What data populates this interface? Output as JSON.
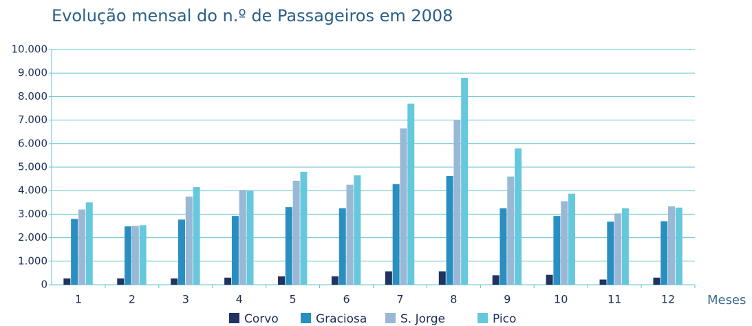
{
  "chart_data": {
    "type": "bar",
    "title": "Evolução mensal do n.º de Passageiros em 2008",
    "x_label": "Meses",
    "categories": [
      "1",
      "2",
      "3",
      "4",
      "5",
      "6",
      "7",
      "8",
      "9",
      "10",
      "11",
      "12"
    ],
    "series": [
      {
        "name": "Corvo",
        "color": "#1f3461",
        "values": [
          270,
          270,
          270,
          300,
          360,
          360,
          570,
          570,
          400,
          420,
          220,
          300
        ]
      },
      {
        "name": "Graciosa",
        "color": "#2a8fc0",
        "values": [
          2800,
          2480,
          2770,
          2920,
          3300,
          3250,
          4280,
          4620,
          3250,
          2920,
          2680,
          2700
        ]
      },
      {
        "name": "S. Jorge",
        "color": "#98b8d6",
        "values": [
          3200,
          2500,
          3750,
          4030,
          4420,
          4250,
          6650,
          7000,
          4600,
          3550,
          3030,
          3330
        ]
      },
      {
        "name": "Pico",
        "color": "#66c8dd",
        "values": [
          3500,
          2530,
          4150,
          4000,
          4800,
          4650,
          7700,
          8800,
          5800,
          3870,
          3250,
          3280
        ]
      }
    ],
    "ylim": [
      0,
      10000
    ],
    "yticks": [
      0,
      {
        "value": 1000,
        "label": "1.000"
      },
      {
        "value": 2000,
        "label": "2.000"
      },
      {
        "value": 3000,
        "label": "3.000"
      },
      {
        "value": 4000,
        "label": "4.000"
      },
      {
        "value": 5000,
        "label": "5.000"
      },
      {
        "value": 6000,
        "label": "6.000"
      },
      {
        "value": 7000,
        "label": "7.000"
      },
      {
        "value": 8000,
        "label": "8.000"
      },
      {
        "value": 9000,
        "label": "9.000"
      },
      {
        "value": 10000,
        "label": "10.000"
      }
    ],
    "grid": true,
    "grid_color": "#5fc2cf",
    "legend": "bottom"
  }
}
